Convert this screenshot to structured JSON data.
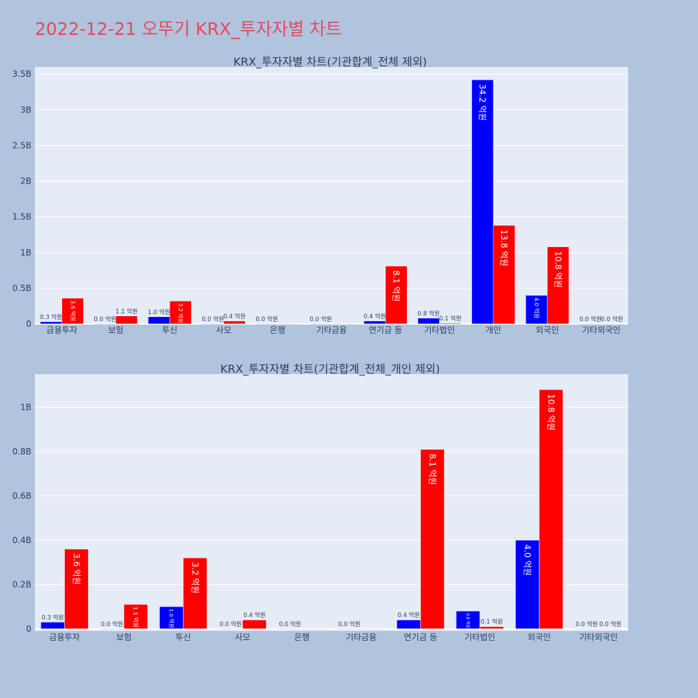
{
  "page_title": "2022-12-21 오뚜기 KRX_투자자별 차트",
  "colors": {
    "series_a": "#0000ff",
    "series_b": "#ff0000",
    "plot_bg": "#e5ecf6",
    "page_bg": "#b0c4de",
    "title": "#e8475f"
  },
  "chart_data": [
    {
      "type": "bar",
      "title": "KRX_투자자별 차트(기관합계_전체 제외)",
      "categories": [
        "금융투자",
        "보험",
        "투신",
        "사모",
        "은행",
        "기타금융",
        "연기금 등",
        "기타법인",
        "개인",
        "외국인",
        "기타외국인"
      ],
      "series": [
        {
          "values": [
            30000000,
            0,
            100000000,
            0,
            0,
            0,
            40000000,
            80000000,
            3420000000,
            400000000,
            0
          ],
          "labels": [
            "0.3 억원",
            "0.0 억원",
            "1.0 억원",
            "0.0 억원",
            "0.0 억원",
            "0.0 억원",
            "0.4 억원",
            "0.8 억원",
            "34.2 억원",
            "4.0 억원",
            "0.0 억원"
          ]
        },
        {
          "values": [
            360000000,
            110000000,
            320000000,
            40000000,
            0,
            0,
            810000000,
            10000000,
            1380000000,
            1080000000,
            0
          ],
          "labels": [
            "3.6 억원",
            "1.1 억원",
            "3.2 억원",
            "0.4 억원",
            "",
            "",
            "8.1 억원",
            "0.1 억원",
            "13.8 억원",
            "10.8 억원",
            "0.0 억원"
          ]
        }
      ],
      "ylim": [
        0,
        3600000000
      ],
      "yticks": [
        0,
        500000000,
        1000000000,
        1500000000,
        2000000000,
        2500000000,
        3000000000,
        3500000000
      ],
      "ytick_labels": [
        "0",
        "0.5B",
        "1B",
        "1.5B",
        "2B",
        "2.5B",
        "3B",
        "3.5B"
      ]
    },
    {
      "type": "bar",
      "title": "KRX_투자자별 차트(기관합계_전체_개인 제외)",
      "categories": [
        "금융투자",
        "보험",
        "투신",
        "사모",
        "은행",
        "기타금융",
        "연기금 등",
        "기타법인",
        "외국인",
        "기타외국인"
      ],
      "series": [
        {
          "values": [
            30000000,
            0,
            100000000,
            0,
            0,
            0,
            40000000,
            80000000,
            400000000,
            0
          ],
          "labels": [
            "0.3 억원",
            "0.0 억원",
            "1.0 억원",
            "0.0 억원",
            "0.0 억원",
            "0.0 억원",
            "0.4 억원",
            "0.8 억원",
            "4.0 억원",
            "0.0 억원"
          ]
        },
        {
          "values": [
            360000000,
            110000000,
            320000000,
            40000000,
            0,
            0,
            810000000,
            10000000,
            1080000000,
            0
          ],
          "labels": [
            "3.6 억원",
            "1.1 억원",
            "3.2 억원",
            "0.4 억원",
            "",
            "",
            "8.1 억원",
            "0.1 억원",
            "10.8 억원",
            "0.0 억원"
          ]
        }
      ],
      "ylim": [
        -10000000,
        1150000000
      ],
      "yticks": [
        0,
        200000000,
        400000000,
        600000000,
        800000000,
        1000000000
      ],
      "ytick_labels": [
        "0",
        "0.2B",
        "0.4B",
        "0.6B",
        "0.8B",
        "1B"
      ]
    }
  ]
}
